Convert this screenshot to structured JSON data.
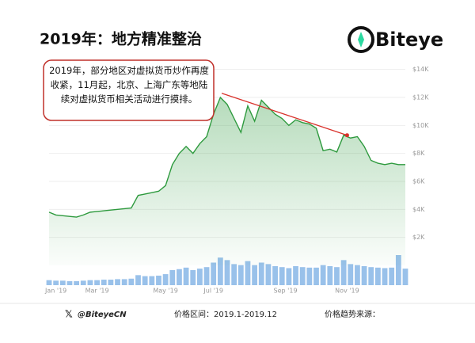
{
  "chart_data": {
    "type": "area",
    "title": "2019年：地方精准整治",
    "brand": "Biteye",
    "annotation": "2019年，部分地区对虚拟货币炒作再度收紧，11月起，北京、上海广东等地陆续对虚拟货币相关活动进行摸排。",
    "footer": {
      "handle": "@BiteyeCN",
      "range": "价格区间：2019.1-2019.12",
      "source": "价格趋势来源："
    },
    "xlim": [
      0,
      52
    ],
    "xticks": [
      {
        "value": 1,
        "label": "Jan '19"
      },
      {
        "value": 7,
        "label": "Mar '19"
      },
      {
        "value": 17,
        "label": "May '19"
      },
      {
        "value": 24,
        "label": "Jul '19"
      },
      {
        "value": 34.5,
        "label": "Sep '19"
      },
      {
        "value": 43.5,
        "label": "Nov '19"
      }
    ],
    "ylim": [
      0,
      15000
    ],
    "yticks": [
      {
        "value": 2000,
        "label": "$2K"
      },
      {
        "value": 4000,
        "label": "$4K"
      },
      {
        "value": 6000,
        "label": "$6K"
      },
      {
        "value": 8000,
        "label": "$8K"
      },
      {
        "value": 10000,
        "label": "$10K"
      },
      {
        "value": 12000,
        "label": "$12K"
      },
      {
        "value": 14000,
        "label": "$14K"
      }
    ],
    "grid": true,
    "color": "#2e9a3e",
    "trend": {
      "color": "#d9312b",
      "x": [
        25.2,
        43.5
      ],
      "values": [
        12300,
        9300
      ]
    },
    "x": [
      0,
      1,
      2,
      3,
      4,
      5,
      6,
      7,
      8,
      9,
      10,
      11,
      12,
      13,
      14,
      15,
      16,
      17,
      18,
      19,
      20,
      21,
      22,
      23,
      24,
      25,
      26,
      27,
      28,
      29,
      30,
      31,
      32,
      33,
      34,
      35,
      36,
      37,
      38,
      39,
      40,
      41,
      42,
      43,
      44,
      45,
      46,
      47,
      48,
      49,
      50,
      51,
      52
    ],
    "values": [
      3800,
      3600,
      3550,
      3500,
      3450,
      3600,
      3800,
      3850,
      3900,
      3950,
      4000,
      4050,
      4100,
      5000,
      5100,
      5200,
      5300,
      5700,
      7200,
      8000,
      8500,
      8000,
      8700,
      9200,
      10800,
      12000,
      11500,
      10500,
      9500,
      11400,
      10300,
      11800,
      11300,
      10800,
      10500,
      10000,
      10400,
      10200,
      10100,
      9800,
      8200,
      8300,
      8100,
      9300,
      9100,
      9200,
      8500,
      7500,
      7300,
      7200,
      7300,
      7200,
      7200
    ],
    "volume_color": "#7fb2e5",
    "volume": [
      10,
      9,
      9,
      8,
      8,
      9,
      10,
      10,
      11,
      11,
      12,
      12,
      13,
      20,
      18,
      18,
      19,
      22,
      30,
      32,
      35,
      30,
      33,
      36,
      45,
      55,
      50,
      42,
      40,
      48,
      40,
      45,
      42,
      38,
      36,
      34,
      38,
      36,
      35,
      35,
      40,
      38,
      36,
      50,
      42,
      40,
      38,
      36,
      35,
      34,
      35,
      60,
      33
    ]
  }
}
